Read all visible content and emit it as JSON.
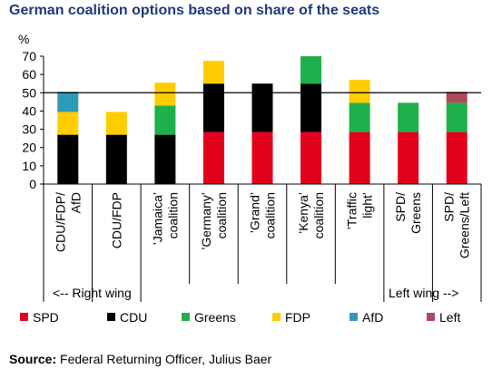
{
  "title": "German coalition options based on share of the seats",
  "source": {
    "label": "Source:",
    "text": " Federal Returning Officer, Julius Baer"
  },
  "chart_data": {
    "type": "bar",
    "stacked": true,
    "unit_label": "%",
    "ylim": [
      0,
      70
    ],
    "yticks": [
      0,
      10,
      20,
      30,
      40,
      50,
      60,
      70
    ],
    "reference_line": 50,
    "categories": [
      [
        "CDU/FDP/",
        "AfD"
      ],
      [
        "CDU/FDP"
      ],
      [
        "’Jamaica’",
        "coalition"
      ],
      [
        "’Germany’",
        "coalition"
      ],
      [
        "’Grand’",
        "coalition"
      ],
      [
        "’Kenya’",
        "coalition"
      ],
      [
        "’Traffic",
        "light’"
      ],
      [
        "SPD/",
        "Greens"
      ],
      [
        "SPD/",
        "Greens/Left"
      ]
    ],
    "series": [
      {
        "name": "SPD",
        "color": "#e3001b",
        "values": [
          0,
          0,
          0,
          28.5,
          28.5,
          28.5,
          28.5,
          28.5,
          28.5
        ]
      },
      {
        "name": "CDU",
        "color": "#000000",
        "values": [
          27,
          27,
          27,
          26.5,
          26.5,
          26.5,
          0,
          0,
          0
        ]
      },
      {
        "name": "Greens",
        "color": "#1eb04b",
        "values": [
          0,
          0,
          16,
          0,
          0,
          15,
          16,
          16,
          16
        ]
      },
      {
        "name": "FDP",
        "color": "#ffcc00",
        "values": [
          12.5,
          12.5,
          12.5,
          12.5,
          0,
          0,
          12.5,
          0,
          0
        ]
      },
      {
        "name": "AfD",
        "color": "#2e9ab8",
        "values": [
          11,
          0,
          0,
          0,
          0,
          0,
          0,
          0,
          0
        ]
      },
      {
        "name": "Left",
        "color": "#b04a5a",
        "values": [
          0,
          0,
          0,
          0,
          0,
          0,
          0,
          0,
          6
        ]
      }
    ],
    "wing_labels": {
      "right": "<-- Right wing",
      "left": "Left wing -->"
    }
  }
}
